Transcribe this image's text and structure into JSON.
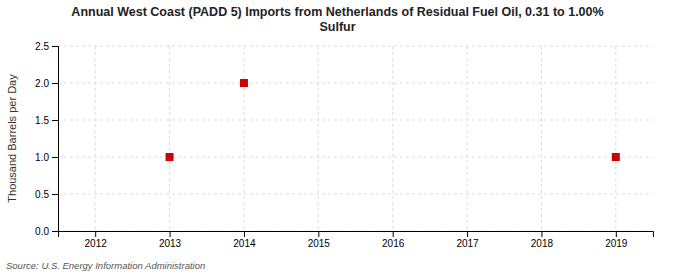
{
  "chart_data": {
    "type": "scatter",
    "title": "Annual West Coast (PADD 5) Imports from Netherlands of Residual Fuel Oil, 0.31 to 1.00%\nSulfur",
    "ylabel": "Thousand Barrels per Day",
    "source": "Source: U.S. Energy Information Administration",
    "x": [
      2013,
      2014,
      2019
    ],
    "values": [
      1.0,
      2.0,
      1.0
    ],
    "color": "#cc0000",
    "marker": "square",
    "xlim": [
      2011.5,
      2019.5
    ],
    "xticks": [
      2012,
      2013,
      2014,
      2015,
      2016,
      2017,
      2018,
      2019
    ],
    "ylim": [
      0.0,
      2.5
    ],
    "yticks": [
      {
        "value": 0.0,
        "label": "0.0"
      },
      0.5,
      {
        "value": 1.0,
        "label": "1.0"
      },
      1.5,
      {
        "value": 2.0,
        "label": "2.0"
      },
      2.5
    ],
    "grid": true
  }
}
